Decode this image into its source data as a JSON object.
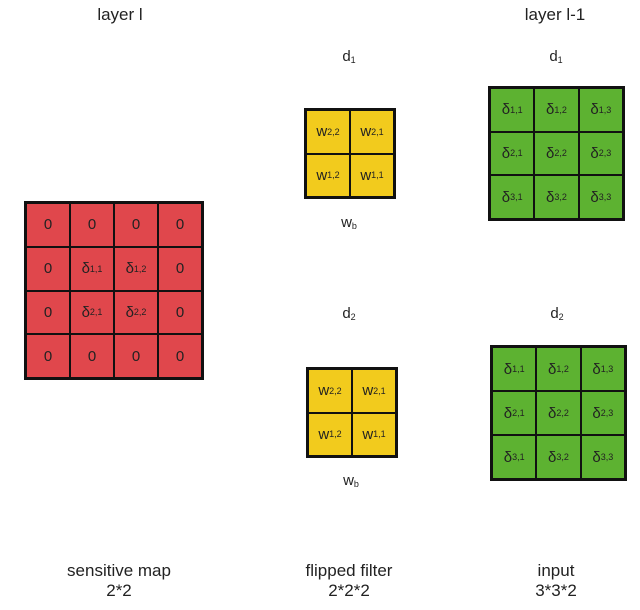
{
  "headers": {
    "left": "layer l",
    "right": "layer l-1"
  },
  "colors": {
    "sensitive": "#E0474C",
    "filter": "#F2CB1D",
    "input": "#5DB231",
    "border": "#111111"
  },
  "channels": [
    {
      "base": "d",
      "sub": "1"
    },
    {
      "base": "d",
      "sub": "2"
    }
  ],
  "filter_label": {
    "base": "w",
    "sub": "b"
  },
  "sensitive_map": [
    [
      {
        "base": "0",
        "sub": ""
      },
      {
        "base": "0",
        "sub": ""
      },
      {
        "base": "0",
        "sub": ""
      },
      {
        "base": "0",
        "sub": ""
      }
    ],
    [
      {
        "base": "0",
        "sub": ""
      },
      {
        "base": "δ",
        "sub": "1,1"
      },
      {
        "base": "δ",
        "sub": "1,2"
      },
      {
        "base": "0",
        "sub": ""
      }
    ],
    [
      {
        "base": "0",
        "sub": ""
      },
      {
        "base": "δ",
        "sub": "2,1"
      },
      {
        "base": "δ",
        "sub": "2,2"
      },
      {
        "base": "0",
        "sub": ""
      }
    ],
    [
      {
        "base": "0",
        "sub": ""
      },
      {
        "base": "0",
        "sub": ""
      },
      {
        "base": "0",
        "sub": ""
      },
      {
        "base": "0",
        "sub": ""
      }
    ]
  ],
  "flipped_filters": [
    [
      [
        {
          "base": "w",
          "sub": "2,2"
        },
        {
          "base": "w",
          "sub": "2,1"
        }
      ],
      [
        {
          "base": "w",
          "sub": "1,2"
        },
        {
          "base": "w",
          "sub": "1,1"
        }
      ]
    ],
    [
      [
        {
          "base": "w",
          "sub": "2,2"
        },
        {
          "base": "w",
          "sub": "2,1"
        }
      ],
      [
        {
          "base": "w",
          "sub": "1,2"
        },
        {
          "base": "w",
          "sub": "1,1"
        }
      ]
    ]
  ],
  "inputs": [
    [
      [
        {
          "base": "δ",
          "sub": "1,1"
        },
        {
          "base": "δ",
          "sub": "1,2"
        },
        {
          "base": "δ",
          "sub": "1,3"
        }
      ],
      [
        {
          "base": "δ",
          "sub": "2,1"
        },
        {
          "base": "δ",
          "sub": "2,2"
        },
        {
          "base": "δ",
          "sub": "2,3"
        }
      ],
      [
        {
          "base": "δ",
          "sub": "3,1"
        },
        {
          "base": "δ",
          "sub": "3,2"
        },
        {
          "base": "δ",
          "sub": "3,3"
        }
      ]
    ],
    [
      [
        {
          "base": "δ",
          "sub": "1,1"
        },
        {
          "base": "δ",
          "sub": "1,2"
        },
        {
          "base": "δ",
          "sub": "1,3"
        }
      ],
      [
        {
          "base": "δ",
          "sub": "2,1"
        },
        {
          "base": "δ",
          "sub": "2,2"
        },
        {
          "base": "δ",
          "sub": "2,3"
        }
      ],
      [
        {
          "base": "δ",
          "sub": "3,1"
        },
        {
          "base": "δ",
          "sub": "3,2"
        },
        {
          "base": "δ",
          "sub": "3,3"
        }
      ]
    ]
  ],
  "captions": {
    "sensitive": {
      "title": "sensitive map",
      "dims": "2*2"
    },
    "filter": {
      "title": "flipped filter",
      "dims": "2*2*2"
    },
    "input": {
      "title": "input",
      "dims": "3*3*2"
    }
  }
}
